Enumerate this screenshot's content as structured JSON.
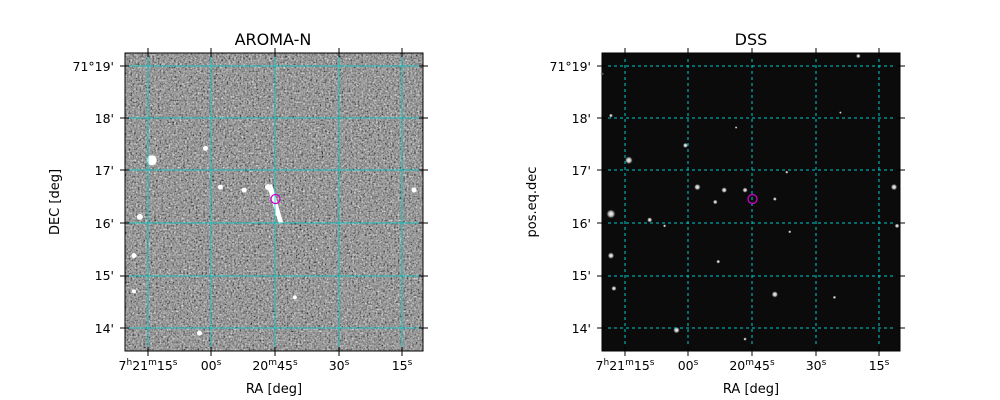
{
  "chart_data": [
    {
      "type": "image",
      "title": "AROMA-N",
      "xlabel": "RA [deg]",
      "ylabel": "DEC [deg]",
      "xticks": [
        {
          "main": "7",
          "sup1": "h",
          "mid": "21",
          "sup2": "m",
          "sec": "15",
          "sup3": "s"
        },
        {
          "sec": "00",
          "sup3": "s"
        },
        {
          "mid": "20",
          "sup2": "m",
          "sec": "45",
          "sup3": "s"
        },
        {
          "sec": "30",
          "sup3": "s"
        },
        {
          "sec": "15",
          "sup3": "s"
        }
      ],
      "yticks": [
        "71°19'",
        "18'",
        "17'",
        "16'",
        "15'",
        "14'"
      ],
      "grid": true,
      "grid_color": "#00c8c8",
      "background": "noisy grayscale",
      "marker": {
        "shape": "circle",
        "color": "#d200d2"
      },
      "sources": [
        [
          0.09,
          0.36,
          5
        ],
        [
          0.27,
          0.32,
          2.5
        ],
        [
          0.32,
          0.45,
          2.5
        ],
        [
          0.4,
          0.46,
          2.5
        ],
        [
          0.48,
          0.45,
          3
        ],
        [
          0.51,
          0.54,
          2
        ],
        [
          0.05,
          0.55,
          3
        ],
        [
          0.03,
          0.68,
          2.5
        ],
        [
          0.97,
          0.46,
          2.5
        ],
        [
          0.57,
          0.82,
          2
        ],
        [
          0.25,
          0.94,
          2.5
        ],
        [
          0.03,
          0.8,
          2
        ]
      ]
    },
    {
      "type": "image",
      "title": "DSS",
      "xlabel": "RA [deg]",
      "ylabel": "pos.eq.dec",
      "xticks": [
        {
          "main": "7",
          "sup1": "h",
          "mid": "21",
          "sup2": "m",
          "sec": "15",
          "sup3": "s"
        },
        {
          "sec": "00",
          "sup3": "s"
        },
        {
          "mid": "20",
          "sup2": "m",
          "sec": "45",
          "sup3": "s"
        },
        {
          "sec": "30",
          "sup3": "s"
        },
        {
          "sec": "15",
          "sup3": "s"
        }
      ],
      "yticks": [
        "71°19'",
        "18'",
        "17'",
        "16'",
        "15'",
        "14'"
      ],
      "grid": true,
      "grid_color": "#00c8c8",
      "background": "dark star field",
      "marker": {
        "shape": "circle",
        "color": "#d200d2"
      },
      "sources": [
        [
          0.09,
          0.36,
          3
        ],
        [
          0.03,
          0.54,
          3.5
        ],
        [
          0.16,
          0.56,
          2
        ],
        [
          0.03,
          0.68,
          2.5
        ],
        [
          0.04,
          0.79,
          2
        ],
        [
          0.28,
          0.31,
          2
        ],
        [
          0.32,
          0.45,
          2.5
        ],
        [
          0.41,
          0.46,
          2.2
        ],
        [
          0.38,
          0.5,
          1.8
        ],
        [
          0.48,
          0.46,
          2
        ],
        [
          0.58,
          0.49,
          1.5
        ],
        [
          0.98,
          0.45,
          2.5
        ],
        [
          0.99,
          0.58,
          1.8
        ],
        [
          0.58,
          0.81,
          2.5
        ],
        [
          0.25,
          0.93,
          2.5
        ],
        [
          0.39,
          0.7,
          1.5
        ],
        [
          0.78,
          0.82,
          1.3
        ],
        [
          0.62,
          0.4,
          1.2
        ],
        [
          0.86,
          0.01,
          1.8
        ],
        [
          0.03,
          0.21,
          1.5
        ],
        [
          0.0,
          0.07,
          1.3
        ],
        [
          0.48,
          0.96,
          1.3
        ],
        [
          0.63,
          0.6,
          1.2
        ],
        [
          0.21,
          0.58,
          1.2
        ],
        [
          0.8,
          0.2,
          1.0
        ],
        [
          0.45,
          0.25,
          1.0
        ]
      ]
    }
  ]
}
